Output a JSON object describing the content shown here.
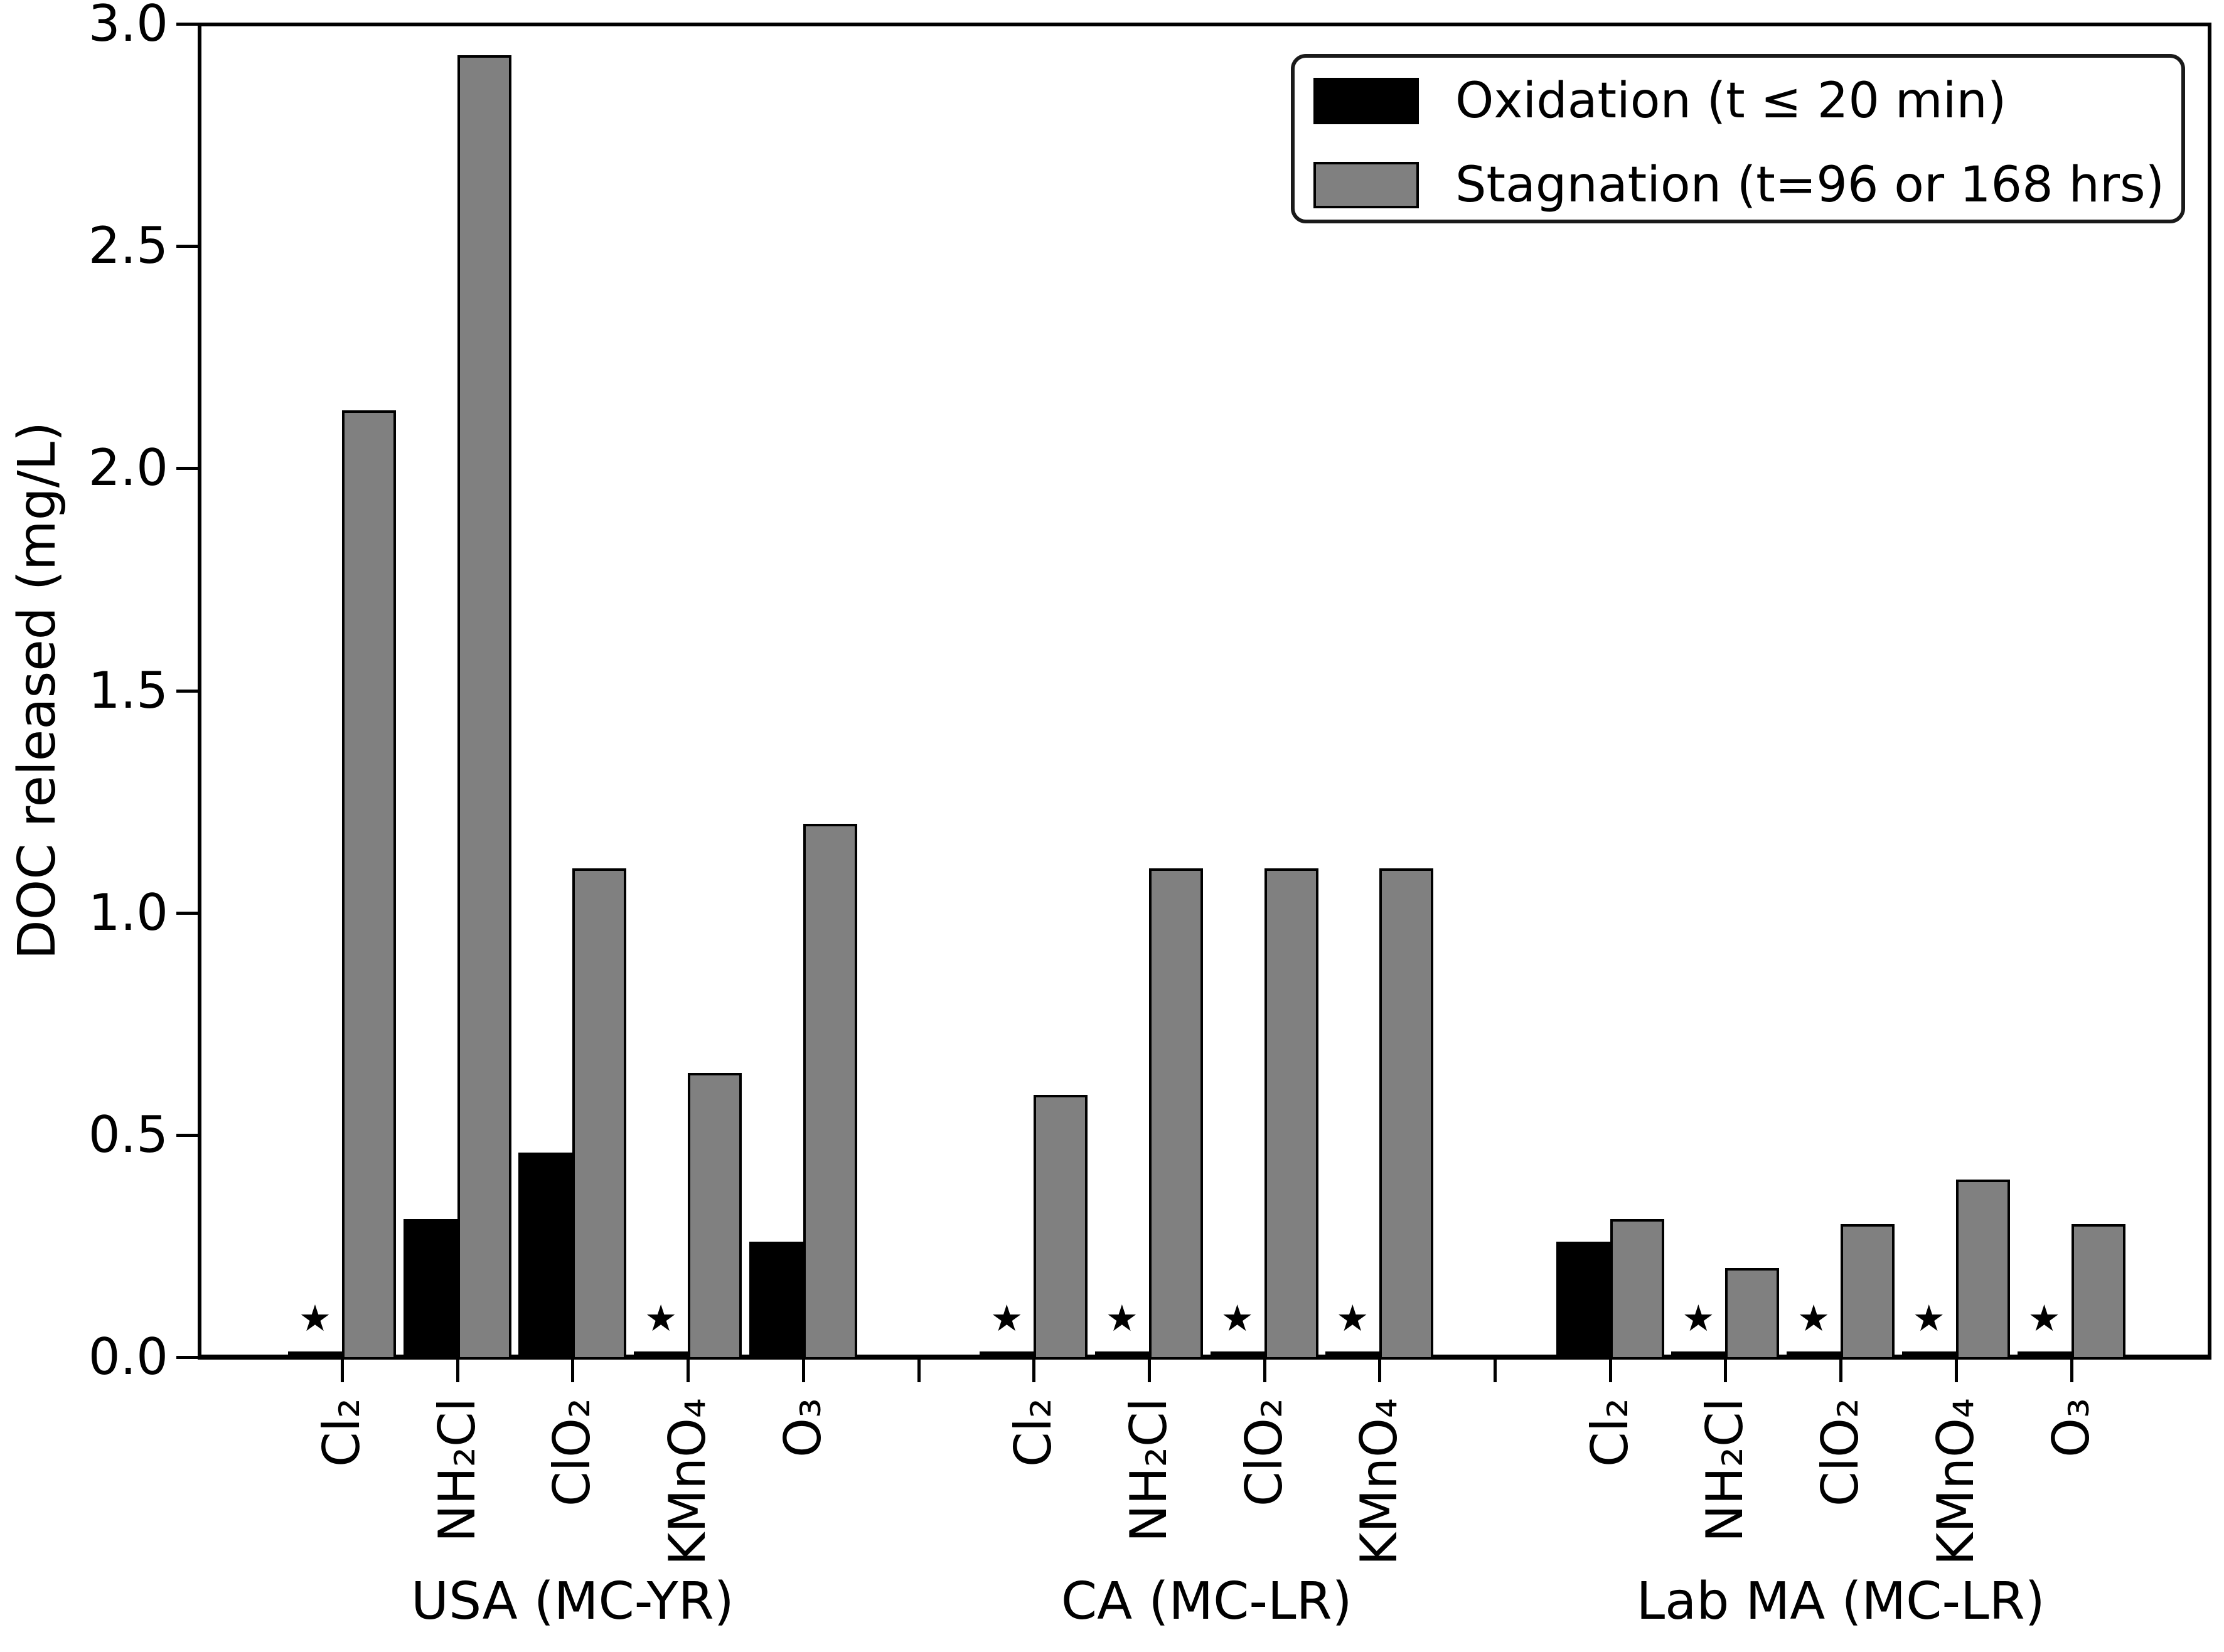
{
  "colors": {
    "oxidation": "#000000",
    "stagnation": "#808080",
    "axis": "#000000",
    "background": "#ffffff"
  },
  "chart_data": {
    "type": "bar",
    "title": "",
    "xlabel": "",
    "ylabel": "DOC released (mg/L)",
    "ylim": [
      0.0,
      3.0
    ],
    "yticks": [
      "0.0",
      "0.5",
      "1.0",
      "1.5",
      "2.0",
      "2.5",
      "3.0"
    ],
    "grid": false,
    "zero_marker": "★",
    "legend": {
      "position": "upper right",
      "entries": [
        {
          "label": "Oxidation (t ≤ 20 min)",
          "color": "#000000"
        },
        {
          "label": "Stagnation (t=96 or 168 hrs)",
          "color": "#808080"
        }
      ]
    },
    "series_names": [
      "Oxidation (t ≤ 20 min)",
      "Stagnation (t=96 or 168 hrs)"
    ],
    "groups": [
      {
        "label": "USA (MC-YR)",
        "categories": [
          "Cl₂",
          "NH₂Cl",
          "ClO₂",
          "KMnO₄",
          "O₃"
        ],
        "oxidation": [
          0,
          0.31,
          0.46,
          0,
          0.26
        ],
        "stagnation": [
          2.13,
          2.93,
          1.1,
          0.64,
          1.2
        ],
        "asterisk": [
          true,
          false,
          false,
          true,
          false
        ]
      },
      {
        "label": "CA (MC-LR)",
        "categories": [
          "Cl₂",
          "NH₂Cl",
          "ClO₂",
          "KMnO₄"
        ],
        "oxidation": [
          0,
          0,
          0,
          0
        ],
        "stagnation": [
          0.59,
          1.1,
          1.1,
          1.1
        ],
        "asterisk": [
          true,
          true,
          true,
          true
        ]
      },
      {
        "label": "Lab MA (MC-LR)",
        "categories": [
          "Cl₂",
          "NH₂Cl",
          "ClO₂",
          "KMnO₄",
          "O₃"
        ],
        "oxidation": [
          0.26,
          0,
          0,
          0,
          0
        ],
        "stagnation": [
          0.31,
          0.2,
          0.3,
          0.4,
          0.3
        ],
        "asterisk": [
          false,
          true,
          true,
          true,
          true
        ]
      }
    ]
  }
}
